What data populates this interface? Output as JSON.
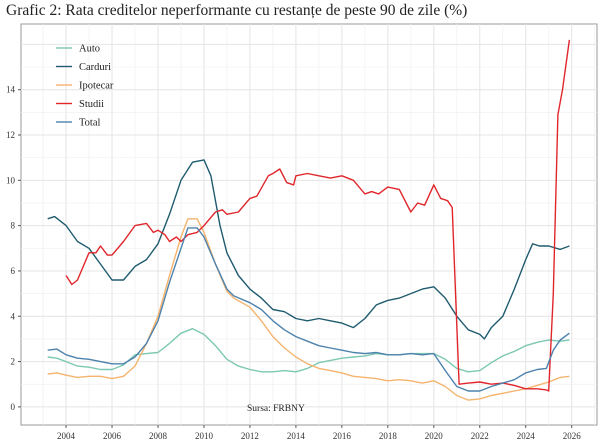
{
  "chart_data": {
    "type": "line",
    "title": "Grafic 2: Rata creditelor neperformante cu restanțe de peste 90 de zile (%)",
    "xlabel": "",
    "ylabel": "",
    "xlim": [
      2002.04,
      2027.1
    ],
    "ylim": [
      -0.8,
      16.9
    ],
    "x_ticks": [
      "2004",
      "2006",
      "2008",
      "2010",
      "2012",
      "2014",
      "2016",
      "2018",
      "2020",
      "2022",
      "2024",
      "2026"
    ],
    "y_ticks": [
      "0",
      "2",
      "4",
      "6",
      "8",
      "10",
      "12",
      "14"
    ],
    "grid": true,
    "legend_position": "top-left",
    "annotation": "Sursa: FRBNY",
    "series": [
      {
        "name": "Auto",
        "color": "#7cc8b2",
        "points": [
          [
            2003.2,
            2.2
          ],
          [
            2003.6,
            2.15
          ],
          [
            2004,
            2.0
          ],
          [
            2004.5,
            1.8
          ],
          [
            2005,
            1.75
          ],
          [
            2005.5,
            1.65
          ],
          [
            2006,
            1.65
          ],
          [
            2006.5,
            1.85
          ],
          [
            2007,
            2.3
          ],
          [
            2007.5,
            2.35
          ],
          [
            2008,
            2.4
          ],
          [
            2008.5,
            2.8
          ],
          [
            2009,
            3.25
          ],
          [
            2009.5,
            3.45
          ],
          [
            2010,
            3.2
          ],
          [
            2010.5,
            2.7
          ],
          [
            2011,
            2.1
          ],
          [
            2011.5,
            1.8
          ],
          [
            2012,
            1.65
          ],
          [
            2012.5,
            1.55
          ],
          [
            2013,
            1.55
          ],
          [
            2013.5,
            1.6
          ],
          [
            2014,
            1.55
          ],
          [
            2014.5,
            1.7
          ],
          [
            2015,
            1.95
          ],
          [
            2015.5,
            2.05
          ],
          [
            2016,
            2.15
          ],
          [
            2016.5,
            2.2
          ],
          [
            2017,
            2.25
          ],
          [
            2017.5,
            2.35
          ],
          [
            2018,
            2.3
          ],
          [
            2018.5,
            2.3
          ],
          [
            2019,
            2.35
          ],
          [
            2019.5,
            2.35
          ],
          [
            2020,
            2.35
          ],
          [
            2020.5,
            2.1
          ],
          [
            2021,
            1.7
          ],
          [
            2021.5,
            1.55
          ],
          [
            2022,
            1.6
          ],
          [
            2022.5,
            1.95
          ],
          [
            2023,
            2.25
          ],
          [
            2023.5,
            2.45
          ],
          [
            2024,
            2.7
          ],
          [
            2024.5,
            2.85
          ],
          [
            2025,
            2.95
          ],
          [
            2025.5,
            2.9
          ],
          [
            2025.9,
            2.95
          ]
        ]
      },
      {
        "name": "Carduri",
        "color": "#1f5b6f",
        "points": [
          [
            2003.2,
            8.3
          ],
          [
            2003.5,
            8.4
          ],
          [
            2004,
            8.0
          ],
          [
            2004.5,
            7.3
          ],
          [
            2005,
            7.0
          ],
          [
            2005.5,
            6.3
          ],
          [
            2006,
            5.6
          ],
          [
            2006.5,
            5.6
          ],
          [
            2007,
            6.2
          ],
          [
            2007.5,
            6.5
          ],
          [
            2008,
            7.2
          ],
          [
            2008.5,
            8.5
          ],
          [
            2009,
            10.0
          ],
          [
            2009.5,
            10.8
          ],
          [
            2010,
            10.9
          ],
          [
            2010.3,
            10.2
          ],
          [
            2010.7,
            8.0
          ],
          [
            2011,
            6.8
          ],
          [
            2011.5,
            5.8
          ],
          [
            2012,
            5.2
          ],
          [
            2012.5,
            4.8
          ],
          [
            2013,
            4.3
          ],
          [
            2013.5,
            4.2
          ],
          [
            2014,
            3.9
          ],
          [
            2014.5,
            3.8
          ],
          [
            2015,
            3.9
          ],
          [
            2015.5,
            3.8
          ],
          [
            2016,
            3.7
          ],
          [
            2016.5,
            3.5
          ],
          [
            2017,
            3.9
          ],
          [
            2017.5,
            4.5
          ],
          [
            2018,
            4.7
          ],
          [
            2018.5,
            4.8
          ],
          [
            2019,
            5.0
          ],
          [
            2019.5,
            5.2
          ],
          [
            2020,
            5.3
          ],
          [
            2020.5,
            4.8
          ],
          [
            2021,
            4.0
          ],
          [
            2021.5,
            3.4
          ],
          [
            2022,
            3.2
          ],
          [
            2022.2,
            3.0
          ],
          [
            2022.5,
            3.5
          ],
          [
            2023,
            4.0
          ],
          [
            2023.5,
            5.2
          ],
          [
            2024,
            6.5
          ],
          [
            2024.3,
            7.2
          ],
          [
            2024.6,
            7.1
          ],
          [
            2025,
            7.1
          ],
          [
            2025.5,
            6.95
          ],
          [
            2025.9,
            7.1
          ]
        ]
      },
      {
        "name": "Ipotecar",
        "color": "#f5b46e",
        "points": [
          [
            2003.2,
            1.45
          ],
          [
            2003.6,
            1.5
          ],
          [
            2004,
            1.4
          ],
          [
            2004.5,
            1.3
          ],
          [
            2005,
            1.35
          ],
          [
            2005.5,
            1.35
          ],
          [
            2006,
            1.25
          ],
          [
            2006.5,
            1.35
          ],
          [
            2007,
            1.8
          ],
          [
            2007.5,
            2.8
          ],
          [
            2008,
            4.0
          ],
          [
            2008.5,
            5.8
          ],
          [
            2009,
            7.5
          ],
          [
            2009.3,
            8.3
          ],
          [
            2009.7,
            8.3
          ],
          [
            2010,
            7.7
          ],
          [
            2010.5,
            6.3
          ],
          [
            2011,
            5.1
          ],
          [
            2011.3,
            4.8
          ],
          [
            2012,
            4.4
          ],
          [
            2012.5,
            3.8
          ],
          [
            2013,
            3.1
          ],
          [
            2013.5,
            2.6
          ],
          [
            2014,
            2.2
          ],
          [
            2014.5,
            1.9
          ],
          [
            2015,
            1.7
          ],
          [
            2015.5,
            1.6
          ],
          [
            2016,
            1.5
          ],
          [
            2016.5,
            1.35
          ],
          [
            2017,
            1.3
          ],
          [
            2017.5,
            1.25
          ],
          [
            2018,
            1.15
          ],
          [
            2018.5,
            1.2
          ],
          [
            2019,
            1.15
          ],
          [
            2019.5,
            1.05
          ],
          [
            2020,
            1.15
          ],
          [
            2020.5,
            0.9
          ],
          [
            2021,
            0.5
          ],
          [
            2021.5,
            0.3
          ],
          [
            2022,
            0.35
          ],
          [
            2022.5,
            0.5
          ],
          [
            2023,
            0.6
          ],
          [
            2023.5,
            0.7
          ],
          [
            2024,
            0.8
          ],
          [
            2024.5,
            0.95
          ],
          [
            2025,
            1.1
          ],
          [
            2025.5,
            1.3
          ],
          [
            2025.9,
            1.35
          ]
        ]
      },
      {
        "name": "Studii",
        "color": "#e0262b",
        "points": [
          [
            2004,
            5.8
          ],
          [
            2004.25,
            5.4
          ],
          [
            2004.5,
            5.6
          ],
          [
            2005,
            6.8
          ],
          [
            2005.3,
            6.8
          ],
          [
            2005.5,
            7.1
          ],
          [
            2005.8,
            6.7
          ],
          [
            2006,
            6.7
          ],
          [
            2006.5,
            7.3
          ],
          [
            2007,
            8.0
          ],
          [
            2007.5,
            8.1
          ],
          [
            2007.8,
            7.7
          ],
          [
            2008,
            7.8
          ],
          [
            2008.3,
            7.6
          ],
          [
            2008.5,
            7.3
          ],
          [
            2008.8,
            7.5
          ],
          [
            2009,
            7.3
          ],
          [
            2009.3,
            7.6
          ],
          [
            2009.7,
            7.7
          ],
          [
            2010,
            8.0
          ],
          [
            2010.5,
            8.6
          ],
          [
            2010.8,
            8.7
          ],
          [
            2011,
            8.5
          ],
          [
            2011.5,
            8.6
          ],
          [
            2012,
            9.2
          ],
          [
            2012.3,
            9.3
          ],
          [
            2012.8,
            10.2
          ],
          [
            2013,
            10.3
          ],
          [
            2013.3,
            10.5
          ],
          [
            2013.6,
            9.9
          ],
          [
            2013.9,
            9.8
          ],
          [
            2014,
            10.2
          ],
          [
            2014.5,
            10.3
          ],
          [
            2015,
            10.2
          ],
          [
            2015.5,
            10.1
          ],
          [
            2016,
            10.2
          ],
          [
            2016.5,
            10.0
          ],
          [
            2017,
            9.4
          ],
          [
            2017.3,
            9.5
          ],
          [
            2017.6,
            9.4
          ],
          [
            2018,
            9.7
          ],
          [
            2018.5,
            9.6
          ],
          [
            2019,
            8.6
          ],
          [
            2019.3,
            9.0
          ],
          [
            2019.6,
            8.9
          ],
          [
            2020,
            9.8
          ],
          [
            2020.3,
            9.2
          ],
          [
            2020.6,
            9.1
          ],
          [
            2020.8,
            8.8
          ],
          [
            2021.1,
            1.0
          ],
          [
            2021.5,
            1.05
          ],
          [
            2022,
            1.1
          ],
          [
            2022.5,
            1.0
          ],
          [
            2023,
            1.05
          ],
          [
            2023.5,
            0.95
          ],
          [
            2024,
            0.8
          ],
          [
            2024.5,
            0.8
          ],
          [
            2024.9,
            0.75
          ],
          [
            2025.0,
            0.7
          ],
          [
            2025.2,
            5.0
          ],
          [
            2025.4,
            12.9
          ],
          [
            2025.6,
            14.0
          ],
          [
            2025.9,
            16.2
          ]
        ]
      },
      {
        "name": "Total",
        "color": "#4d82ad",
        "points": [
          [
            2003.2,
            2.5
          ],
          [
            2003.6,
            2.55
          ],
          [
            2004,
            2.3
          ],
          [
            2004.5,
            2.15
          ],
          [
            2005,
            2.1
          ],
          [
            2005.5,
            2.0
          ],
          [
            2006,
            1.9
          ],
          [
            2006.5,
            1.9
          ],
          [
            2007,
            2.2
          ],
          [
            2007.5,
            2.8
          ],
          [
            2008,
            3.8
          ],
          [
            2008.5,
            5.5
          ],
          [
            2009,
            7.0
          ],
          [
            2009.3,
            7.9
          ],
          [
            2009.7,
            7.9
          ],
          [
            2010,
            7.5
          ],
          [
            2010.5,
            6.3
          ],
          [
            2011,
            5.2
          ],
          [
            2011.3,
            4.9
          ],
          [
            2012,
            4.6
          ],
          [
            2012.5,
            4.3
          ],
          [
            2013,
            3.8
          ],
          [
            2013.5,
            3.4
          ],
          [
            2014,
            3.1
          ],
          [
            2014.5,
            2.9
          ],
          [
            2015,
            2.7
          ],
          [
            2015.5,
            2.6
          ],
          [
            2016,
            2.5
          ],
          [
            2016.5,
            2.4
          ],
          [
            2017,
            2.35
          ],
          [
            2017.5,
            2.4
          ],
          [
            2018,
            2.3
          ],
          [
            2018.5,
            2.3
          ],
          [
            2019,
            2.35
          ],
          [
            2019.5,
            2.3
          ],
          [
            2020,
            2.35
          ],
          [
            2020.5,
            1.6
          ],
          [
            2021,
            0.9
          ],
          [
            2021.5,
            0.7
          ],
          [
            2022,
            0.7
          ],
          [
            2022.5,
            0.9
          ],
          [
            2023,
            1.05
          ],
          [
            2023.5,
            1.2
          ],
          [
            2024,
            1.5
          ],
          [
            2024.5,
            1.65
          ],
          [
            2024.9,
            1.7
          ],
          [
            2025.2,
            2.5
          ],
          [
            2025.5,
            2.95
          ],
          [
            2025.9,
            3.25
          ]
        ]
      }
    ]
  }
}
